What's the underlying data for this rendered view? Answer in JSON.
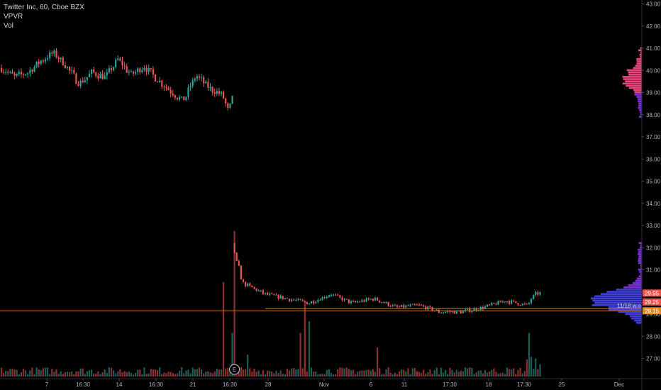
{
  "legend": {
    "title": "Twitter Inc, 60, Cboe BZX",
    "indicator_1": "VPVR",
    "indicator_2": "Vol"
  },
  "price_badges": {
    "last": "29.95",
    "mid": "29.25",
    "orange": "29.15",
    "marker_label": "11/18 w.o"
  },
  "earnings_marker": "E",
  "colors": {
    "up": "#26a69a",
    "down": "#ef5350",
    "vol_up": "#1b5e57",
    "vol_down": "#8e2f2f",
    "vpvr_red": "#e8457a",
    "vpvr_purple": "#7b2fd9",
    "vpvr_blue": "#3f3fd8",
    "level_line": "#c27a2c",
    "axis_text": "#b2b5be",
    "background": "#000000"
  },
  "chart_data": {
    "type": "candlestick",
    "title": "Twitter Inc, 60, Cboe BZX",
    "y_ticks": [
      27,
      28,
      29,
      30,
      31,
      32,
      33,
      34,
      35,
      36,
      37,
      38,
      39,
      40,
      41,
      42,
      43
    ],
    "y_tick_labels": [
      "27.00",
      "28.00",
      "29.00",
      "30.00",
      "31.00",
      "32.00",
      "33.00",
      "34.00",
      "35.00",
      "36.00",
      "37.00",
      "38.00",
      "39.00",
      "40.00",
      "41.00",
      "42.00",
      "43.00"
    ],
    "ylim": [
      26.4,
      43.2
    ],
    "x_labels": [
      "7",
      "16:30",
      "14",
      "16:30",
      "21",
      "16:30",
      "28",
      "Nov",
      "6",
      "11",
      "17:30",
      "18",
      "17:30",
      "25",
      "Dec"
    ],
    "bar_count": 234,
    "price_path": [
      [
        0,
        40.1
      ],
      [
        10,
        39.7
      ],
      [
        20,
        39.9
      ],
      [
        30,
        40.4
      ],
      [
        40,
        40.8
      ],
      [
        50,
        40.2
      ],
      [
        60,
        39.4
      ],
      [
        70,
        39.9
      ],
      [
        80,
        39.7
      ],
      [
        90,
        40.5
      ],
      [
        100,
        39.8
      ],
      [
        110,
        40.2
      ],
      [
        120,
        39.6
      ],
      [
        130,
        39.1
      ],
      [
        140,
        38.6
      ],
      [
        150,
        39.8
      ],
      [
        160,
        39.2
      ],
      [
        170,
        38.9
      ],
      [
        175,
        38.2
      ],
      [
        178,
        38.7
      ],
      [
        179,
        31.8
      ],
      [
        185,
        30.4
      ],
      [
        200,
        29.9
      ],
      [
        215,
        29.7
      ],
      [
        230,
        29.5
      ],
      [
        245,
        29.9
      ],
      [
        260,
        29.5
      ],
      [
        275,
        29.7
      ],
      [
        290,
        29.3
      ],
      [
        305,
        29.4
      ],
      [
        320,
        29.1
      ],
      [
        335,
        29.1
      ],
      [
        350,
        29.3
      ],
      [
        365,
        29.6
      ],
      [
        380,
        29.4
      ],
      [
        385,
        29.9
      ],
      [
        389,
        29.95
      ]
    ],
    "volume_spikes": [
      {
        "bar": 179,
        "rel": 1.0
      },
      {
        "bar": 178,
        "rel": 0.3
      },
      {
        "bar": 176,
        "rel": 0.65
      },
      {
        "bar": 240,
        "rel": 0.38
      },
      {
        "bar": 232,
        "rel": 0.3
      },
      {
        "bar": 293,
        "rel": 0.52
      },
      {
        "bar": 380,
        "rel": 0.2
      },
      {
        "bar": 194,
        "rel": 0.3
      },
      {
        "bar": 226,
        "rel": 0.15
      }
    ],
    "vpvr": {
      "upper_range": [
        37.9,
        41.1
      ],
      "upper_peak_price": 39.6,
      "lower_range": [
        28.6,
        32.3
      ],
      "lower_peak_price": 29.6
    },
    "levels": {
      "orange_line": 29.15,
      "marker_line": 29.25
    }
  }
}
